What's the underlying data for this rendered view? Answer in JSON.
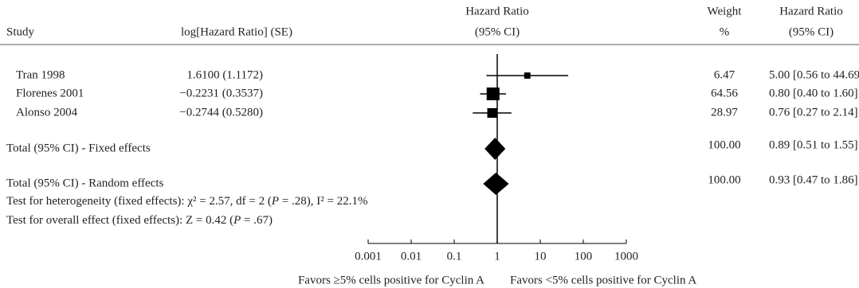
{
  "chart_data": {
    "type": "forest",
    "headers": {
      "study": "Study",
      "log_hr": "log[Hazard Ratio] (SE)",
      "plot": [
        "Hazard Ratio",
        "(95% CI)"
      ],
      "weight": [
        "Weight",
        "%"
      ],
      "hr": [
        "Hazard Ratio",
        "(95% CI)"
      ]
    },
    "studies": [
      {
        "name": "Tran 1998",
        "log_hr_se": "1.6100 (1.1172)",
        "weight": 6.47,
        "hr": 5.0,
        "ci": [
          0.56,
          44.69
        ],
        "hr_label": "5.00 [0.56 to 44.69]"
      },
      {
        "name": "Florenes 2001",
        "log_hr_se": "−0.2231 (0.3537)",
        "weight": 64.56,
        "hr": 0.8,
        "ci": [
          0.4,
          1.6
        ],
        "hr_label": "0.80 [0.40 to 1.60]"
      },
      {
        "name": "Alonso 2004",
        "log_hr_se": "−0.2744 (0.5280)",
        "weight": 28.97,
        "hr": 0.76,
        "ci": [
          0.27,
          2.14
        ],
        "hr_label": "0.76 [0.27 to 2.14]"
      }
    ],
    "totals": [
      {
        "name": "Total (95% CI) - Fixed effects",
        "weight_label": "100.00",
        "hr": 0.89,
        "ci": [
          0.51,
          1.55
        ],
        "hr_label": "0.89 [0.51 to 1.55]"
      },
      {
        "name": "Total (95% CI) - Random effects",
        "weight_label": "100.00",
        "hr": 0.93,
        "ci": [
          0.47,
          1.86
        ],
        "hr_label": "0.93 [0.47 to 1.86]"
      }
    ],
    "notes": [
      [
        "Test for heterogeneity (fixed effects): χ² = 2.57, df = 2 (",
        "P",
        " = .28), I² = 22.1%"
      ],
      [
        "Test for overall effect (fixed effects): Z = 0.42 (",
        "P",
        " = .67)"
      ]
    ],
    "xlabels": [
      "Favors ≥5% cells positive for Cyclin A",
      "Favors <5% cells positive for Cyclin A"
    ],
    "log_x": true,
    "xlim": [
      0.001,
      1000
    ],
    "xticks": [
      0.001,
      0.01,
      0.1,
      1,
      10,
      100,
      1000
    ],
    "color": "#000000"
  }
}
